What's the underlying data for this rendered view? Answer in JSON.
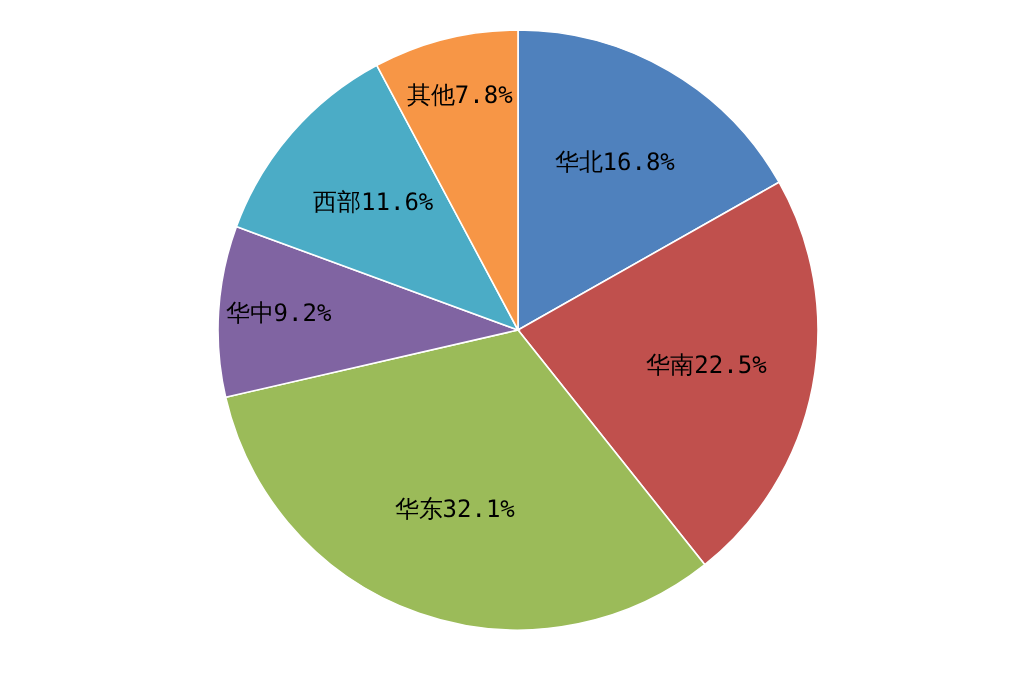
{
  "chart_data": {
    "type": "pie",
    "categories": [
      "华北",
      "华南",
      "华东",
      "华中",
      "西部",
      "其他"
    ],
    "values": [
      16.8,
      22.5,
      32.1,
      9.2,
      11.6,
      7.8
    ],
    "colors": [
      "#4f81bd",
      "#c0504d",
      "#9bbb59",
      "#8064a2",
      "#4bacc6",
      "#f79646"
    ],
    "value_labels": [
      "16.8%",
      "22.5%",
      "32.1%",
      "9.2%",
      "11.6%",
      "7.8%"
    ]
  }
}
